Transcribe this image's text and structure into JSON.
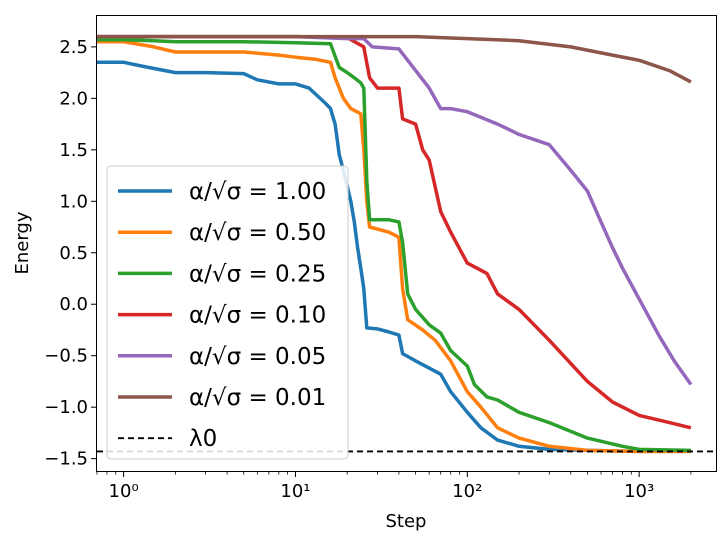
{
  "chart_data": {
    "type": "line",
    "title": "",
    "xlabel": "Step",
    "ylabel": "Energy",
    "xscale": "log",
    "xlim": [
      0.7,
      2800
    ],
    "ylim": [
      -1.62,
      2.8
    ],
    "grid": false,
    "legend_position": "center-left",
    "x_ticks": [
      {
        "value": 1,
        "label": "10⁰"
      },
      {
        "value": 10,
        "label": "10¹"
      },
      {
        "value": 100,
        "label": "10²"
      },
      {
        "value": 1000,
        "label": "10³"
      }
    ],
    "y_ticks": [
      {
        "value": -1.5,
        "label": "−1.5"
      },
      {
        "value": -1.0,
        "label": "−1.0"
      },
      {
        "value": -0.5,
        "label": "−0.5"
      },
      {
        "value": 0.0,
        "label": "0.0"
      },
      {
        "value": 0.5,
        "label": "0.5"
      },
      {
        "value": 1.0,
        "label": "1.0"
      },
      {
        "value": 1.5,
        "label": "1.5"
      },
      {
        "value": 2.0,
        "label": "2.0"
      },
      {
        "value": 2.5,
        "label": "2.5"
      }
    ],
    "reference_line": {
      "name": "λ₀",
      "legend_label": "λ0",
      "value": -1.43,
      "style": "dashed",
      "color": "#000000"
    },
    "series": [
      {
        "name": "α/√σ = 1.00",
        "legend_label": "α/√σ = 1.00",
        "color": "#1f77b4",
        "points": [
          [
            0.7,
            2.35
          ],
          [
            1.0,
            2.35
          ],
          [
            1.3,
            2.31
          ],
          [
            2,
            2.25
          ],
          [
            3,
            2.25
          ],
          [
            5,
            2.24
          ],
          [
            6,
            2.18
          ],
          [
            8,
            2.14
          ],
          [
            10,
            2.14
          ],
          [
            12,
            2.1
          ],
          [
            15,
            1.95
          ],
          [
            16,
            1.9
          ],
          [
            17,
            1.75
          ],
          [
            18,
            1.45
          ],
          [
            19,
            1.3
          ],
          [
            20,
            1.15
          ],
          [
            21,
            1.0
          ],
          [
            22,
            0.8
          ],
          [
            23,
            0.55
          ],
          [
            24,
            0.35
          ],
          [
            25,
            0.15
          ],
          [
            26,
            -0.23
          ],
          [
            30,
            -0.24
          ],
          [
            35,
            -0.27
          ],
          [
            40,
            -0.3
          ],
          [
            42,
            -0.48
          ],
          [
            50,
            -0.55
          ],
          [
            60,
            -0.62
          ],
          [
            70,
            -0.68
          ],
          [
            80,
            -0.85
          ],
          [
            100,
            -1.05
          ],
          [
            120,
            -1.2
          ],
          [
            150,
            -1.32
          ],
          [
            200,
            -1.38
          ],
          [
            300,
            -1.41
          ],
          [
            500,
            -1.42
          ],
          [
            1000,
            -1.43
          ],
          [
            2000,
            -1.43
          ]
        ]
      },
      {
        "name": "α/√σ = 0.50",
        "legend_label": "α/√σ = 0.50",
        "color": "#ff7f0e",
        "points": [
          [
            0.7,
            2.55
          ],
          [
            1.0,
            2.55
          ],
          [
            1.5,
            2.5
          ],
          [
            2,
            2.45
          ],
          [
            5,
            2.45
          ],
          [
            8,
            2.42
          ],
          [
            10,
            2.4
          ],
          [
            13,
            2.38
          ],
          [
            16,
            2.35
          ],
          [
            17,
            2.2
          ],
          [
            19,
            2.0
          ],
          [
            21,
            1.9
          ],
          [
            24,
            1.85
          ],
          [
            25,
            1.5
          ],
          [
            26,
            1.0
          ],
          [
            27,
            0.75
          ],
          [
            30,
            0.73
          ],
          [
            35,
            0.7
          ],
          [
            40,
            0.65
          ],
          [
            42,
            0.15
          ],
          [
            45,
            -0.15
          ],
          [
            55,
            -0.25
          ],
          [
            65,
            -0.35
          ],
          [
            80,
            -0.55
          ],
          [
            100,
            -0.85
          ],
          [
            120,
            -1.0
          ],
          [
            150,
            -1.2
          ],
          [
            200,
            -1.3
          ],
          [
            300,
            -1.38
          ],
          [
            500,
            -1.42
          ],
          [
            1000,
            -1.43
          ],
          [
            2000,
            -1.43
          ]
        ]
      },
      {
        "name": "α/√σ = 0.25",
        "legend_label": "α/√σ = 0.25",
        "color": "#2ca02c",
        "points": [
          [
            0.7,
            2.57
          ],
          [
            1.0,
            2.57
          ],
          [
            1.5,
            2.56
          ],
          [
            2,
            2.55
          ],
          [
            5,
            2.55
          ],
          [
            10,
            2.54
          ],
          [
            16,
            2.53
          ],
          [
            18,
            2.3
          ],
          [
            20,
            2.25
          ],
          [
            22,
            2.2
          ],
          [
            24,
            2.15
          ],
          [
            25,
            2.1
          ],
          [
            26,
            1.2
          ],
          [
            27,
            0.82
          ],
          [
            35,
            0.82
          ],
          [
            40,
            0.8
          ],
          [
            42,
            0.6
          ],
          [
            45,
            0.1
          ],
          [
            50,
            -0.05
          ],
          [
            60,
            -0.2
          ],
          [
            70,
            -0.28
          ],
          [
            80,
            -0.45
          ],
          [
            100,
            -0.6
          ],
          [
            110,
            -0.78
          ],
          [
            130,
            -0.9
          ],
          [
            150,
            -0.93
          ],
          [
            200,
            -1.05
          ],
          [
            300,
            -1.15
          ],
          [
            500,
            -1.3
          ],
          [
            800,
            -1.38
          ],
          [
            1000,
            -1.41
          ],
          [
            2000,
            -1.42
          ]
        ]
      },
      {
        "name": "α/√σ = 0.10",
        "legend_label": "α/√σ = 0.10",
        "color": "#d62728",
        "points": [
          [
            0.7,
            2.6
          ],
          [
            1.0,
            2.6
          ],
          [
            5,
            2.6
          ],
          [
            10,
            2.6
          ],
          [
            20,
            2.59
          ],
          [
            25,
            2.5
          ],
          [
            27,
            2.2
          ],
          [
            30,
            2.1
          ],
          [
            35,
            2.1
          ],
          [
            40,
            2.1
          ],
          [
            42,
            1.8
          ],
          [
            50,
            1.75
          ],
          [
            55,
            1.5
          ],
          [
            60,
            1.4
          ],
          [
            70,
            0.9
          ],
          [
            80,
            0.7
          ],
          [
            100,
            0.4
          ],
          [
            130,
            0.3
          ],
          [
            150,
            0.1
          ],
          [
            200,
            -0.05
          ],
          [
            300,
            -0.35
          ],
          [
            500,
            -0.75
          ],
          [
            700,
            -0.95
          ],
          [
            1000,
            -1.08
          ],
          [
            1500,
            -1.15
          ],
          [
            2000,
            -1.2
          ]
        ]
      },
      {
        "name": "α/√σ = 0.05",
        "legend_label": "α/√σ = 0.05",
        "color": "#9467bd",
        "points": [
          [
            0.7,
            2.6
          ],
          [
            1.0,
            2.6
          ],
          [
            10,
            2.6
          ],
          [
            20,
            2.58
          ],
          [
            25,
            2.58
          ],
          [
            28,
            2.5
          ],
          [
            40,
            2.48
          ],
          [
            60,
            2.1
          ],
          [
            70,
            1.9
          ],
          [
            80,
            1.9
          ],
          [
            100,
            1.87
          ],
          [
            150,
            1.75
          ],
          [
            200,
            1.65
          ],
          [
            300,
            1.55
          ],
          [
            400,
            1.3
          ],
          [
            500,
            1.1
          ],
          [
            600,
            0.8
          ],
          [
            700,
            0.55
          ],
          [
            800,
            0.35
          ],
          [
            1000,
            0.05
          ],
          [
            1300,
            -0.3
          ],
          [
            1600,
            -0.55
          ],
          [
            2000,
            -0.78
          ]
        ]
      },
      {
        "name": "α/√σ = 0.01",
        "legend_label": "α/√σ = 0.01",
        "color": "#8c564b",
        "points": [
          [
            0.7,
            2.6
          ],
          [
            1.0,
            2.6
          ],
          [
            10,
            2.6
          ],
          [
            50,
            2.6
          ],
          [
            100,
            2.58
          ],
          [
            200,
            2.56
          ],
          [
            400,
            2.5
          ],
          [
            700,
            2.42
          ],
          [
            1000,
            2.37
          ],
          [
            1500,
            2.27
          ],
          [
            2000,
            2.16
          ]
        ]
      }
    ]
  }
}
